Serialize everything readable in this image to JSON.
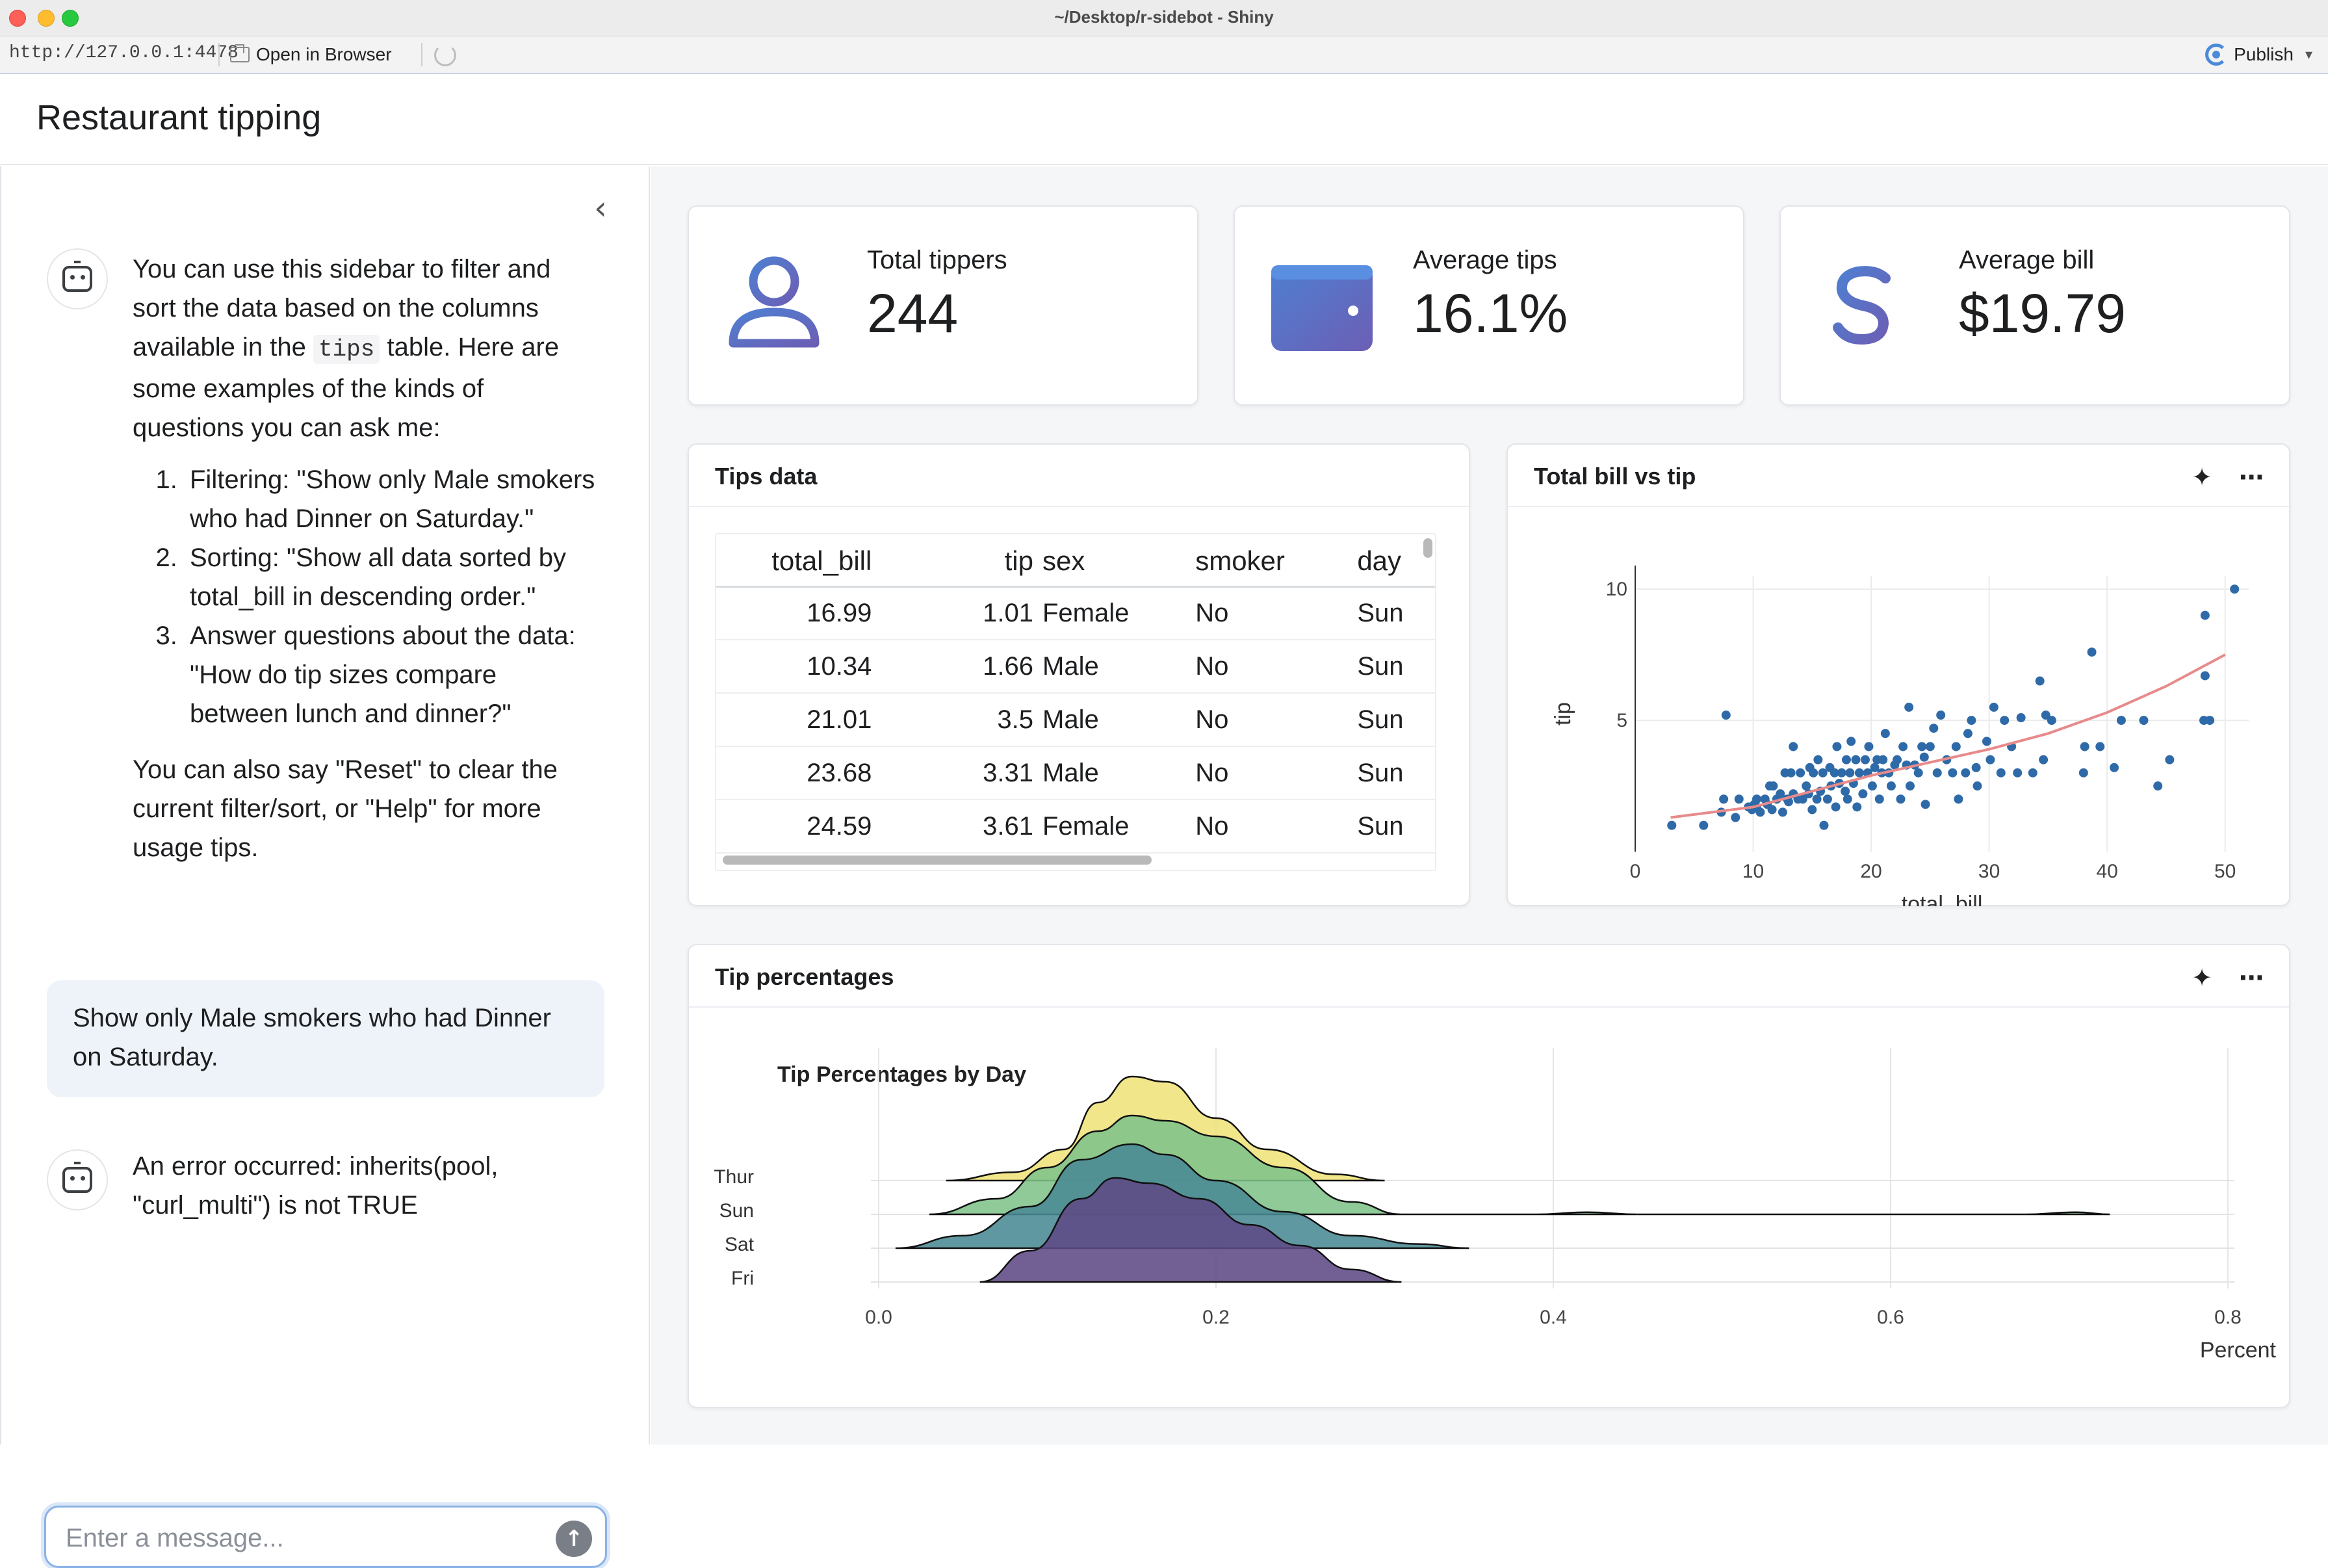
{
  "window": {
    "title": "~/Desktop/r-sidebot - Shiny",
    "url": "http://127.0.0.1:4478",
    "open_in_browser": "Open in Browser",
    "publish": "Publish"
  },
  "app": {
    "title": "Restaurant tipping"
  },
  "sidebar": {
    "intro_part1": "You can use this sidebar to filter and sort the data based on the columns available in the ",
    "intro_code": "tips",
    "intro_part2": " table. Here are some examples of the kinds of questions you can ask me:",
    "examples": [
      "Filtering: \"Show only Male smokers who had Dinner on Saturday.\"",
      "Sorting: \"Show all data sorted by total_bill in descending order.\"",
      "Answer questions about the data: \"How do tip sizes compare between lunch and dinner?\""
    ],
    "outro": "You can also say \"Reset\" to clear the current filter/sort, or \"Help\" for more usage tips.",
    "user_message": "Show only Male smokers who had Dinner on Saturday.",
    "error_message": "An error occurred: inherits(pool, \"curl_multi\") is not TRUE",
    "input_placeholder": "Enter a message...",
    "collapse_icon": "chevron-left-icon",
    "send_icon": "arrow-up-icon"
  },
  "value_boxes": [
    {
      "title": "Total tippers",
      "value": "244",
      "icon": "person-icon"
    },
    {
      "title": "Average tips",
      "value": "16.1%",
      "icon": "wallet-icon"
    },
    {
      "title": "Average bill",
      "value": "$19.79",
      "icon": "dollar-icon"
    }
  ],
  "colors": {
    "accent_gradient_start": "#4f7fd1",
    "accent_gradient_end": "#6b5fb5",
    "scatter_point": "#2f6aa8",
    "trend_line": "#e88a8a"
  },
  "tips_table": {
    "title": "Tips data",
    "columns": [
      "total_bill",
      "tip",
      "sex",
      "smoker",
      "day"
    ],
    "rows": [
      [
        "16.99",
        "1.01",
        "Female",
        "No",
        "Sun"
      ],
      [
        "10.34",
        "1.66",
        "Male",
        "No",
        "Sun"
      ],
      [
        "21.01",
        "3.5",
        "Male",
        "No",
        "Sun"
      ],
      [
        "23.68",
        "3.31",
        "Male",
        "No",
        "Sun"
      ],
      [
        "24.59",
        "3.61",
        "Female",
        "No",
        "Sun"
      ]
    ]
  },
  "scatter_card": {
    "title": "Total bill vs tip",
    "sparkle_icon": "sparkle-icon",
    "menu_icon": "more-horizontal-icon"
  },
  "ridge_card": {
    "title": "Tip percentages",
    "sparkle_icon": "sparkle-icon",
    "menu_icon": "more-horizontal-icon"
  },
  "chart_data": [
    {
      "type": "scatter",
      "xlabel": "total_bill",
      "ylabel": "tip",
      "xlim": [
        0,
        52
      ],
      "ylim": [
        0,
        10.5
      ],
      "xticks": [
        0,
        10,
        20,
        30,
        40,
        50
      ],
      "yticks": [
        5,
        10
      ],
      "grid": true,
      "trendline": [
        [
          3,
          1.3
        ],
        [
          10,
          1.7
        ],
        [
          15,
          2.3
        ],
        [
          20,
          2.9
        ],
        [
          25,
          3.4
        ],
        [
          30,
          3.9
        ],
        [
          35,
          4.5
        ],
        [
          40,
          5.3
        ],
        [
          45,
          6.3
        ],
        [
          50,
          7.5
        ]
      ],
      "points": [
        [
          3.1,
          1.0
        ],
        [
          5.8,
          1.0
        ],
        [
          7.3,
          1.5
        ],
        [
          7.5,
          2.0
        ],
        [
          7.7,
          5.2
        ],
        [
          8.5,
          1.3
        ],
        [
          8.8,
          2.0
        ],
        [
          9.6,
          1.7
        ],
        [
          9.9,
          1.6
        ],
        [
          10.1,
          1.8
        ],
        [
          10.3,
          1.7
        ],
        [
          10.3,
          2.0
        ],
        [
          10.6,
          1.5
        ],
        [
          11.0,
          2.0
        ],
        [
          11.2,
          1.8
        ],
        [
          11.4,
          2.5
        ],
        [
          11.6,
          1.6
        ],
        [
          11.7,
          2.5
        ],
        [
          12.0,
          2.0
        ],
        [
          12.3,
          2.2
        ],
        [
          12.5,
          1.5
        ],
        [
          12.7,
          3.0
        ],
        [
          12.9,
          2.0
        ],
        [
          13.0,
          1.9
        ],
        [
          13.2,
          3.0
        ],
        [
          13.4,
          2.2
        ],
        [
          13.4,
          4.0
        ],
        [
          13.8,
          2.0
        ],
        [
          14.0,
          3.0
        ],
        [
          14.2,
          2.0
        ],
        [
          14.5,
          2.5
        ],
        [
          14.7,
          2.2
        ],
        [
          14.8,
          3.2
        ],
        [
          15.0,
          1.6
        ],
        [
          15.1,
          3.0
        ],
        [
          15.4,
          2.0
        ],
        [
          15.5,
          3.5
        ],
        [
          15.7,
          2.3
        ],
        [
          15.9,
          3.0
        ],
        [
          16.0,
          1.0
        ],
        [
          16.3,
          2.0
        ],
        [
          16.5,
          3.2
        ],
        [
          16.6,
          2.5
        ],
        [
          16.9,
          3.0
        ],
        [
          17.0,
          1.7
        ],
        [
          17.1,
          4.0
        ],
        [
          17.3,
          2.6
        ],
        [
          17.5,
          3.0
        ],
        [
          17.8,
          2.3
        ],
        [
          17.9,
          3.5
        ],
        [
          18.0,
          2.0
        ],
        [
          18.2,
          3.0
        ],
        [
          18.3,
          4.2
        ],
        [
          18.5,
          2.6
        ],
        [
          18.7,
          3.5
        ],
        [
          18.8,
          1.7
        ],
        [
          19.0,
          3.0
        ],
        [
          19.3,
          2.2
        ],
        [
          19.5,
          3.5
        ],
        [
          19.7,
          3.0
        ],
        [
          19.8,
          4.0
        ],
        [
          20.1,
          2.5
        ],
        [
          20.3,
          3.2
        ],
        [
          20.5,
          3.5
        ],
        [
          20.7,
          2.0
        ],
        [
          20.9,
          3.0
        ],
        [
          21.0,
          3.5
        ],
        [
          21.2,
          4.5
        ],
        [
          21.5,
          3.0
        ],
        [
          21.7,
          2.5
        ],
        [
          22.0,
          3.3
        ],
        [
          22.2,
          3.5
        ],
        [
          22.5,
          2.0
        ],
        [
          22.7,
          4.0
        ],
        [
          23.0,
          3.3
        ],
        [
          23.2,
          5.5
        ],
        [
          23.3,
          2.5
        ],
        [
          23.7,
          3.3
        ],
        [
          24.0,
          3.0
        ],
        [
          24.3,
          4.0
        ],
        [
          24.5,
          3.6
        ],
        [
          24.6,
          1.8
        ],
        [
          25.0,
          4.0
        ],
        [
          25.3,
          4.7
        ],
        [
          25.6,
          3.0
        ],
        [
          25.9,
          5.2
        ],
        [
          26.4,
          3.5
        ],
        [
          26.9,
          3.0
        ],
        [
          27.2,
          4.0
        ],
        [
          27.4,
          2.0
        ],
        [
          28.0,
          3.0
        ],
        [
          28.2,
          4.5
        ],
        [
          28.5,
          5.0
        ],
        [
          28.9,
          3.2
        ],
        [
          29.0,
          2.5
        ],
        [
          29.8,
          4.2
        ],
        [
          30.1,
          3.5
        ],
        [
          30.4,
          5.5
        ],
        [
          31.0,
          3.0
        ],
        [
          31.3,
          5.0
        ],
        [
          31.9,
          4.0
        ],
        [
          32.4,
          3.0
        ],
        [
          32.7,
          5.1
        ],
        [
          33.7,
          3.0
        ],
        [
          34.3,
          6.5
        ],
        [
          34.6,
          3.5
        ],
        [
          34.8,
          5.2
        ],
        [
          35.3,
          5.0
        ],
        [
          38.0,
          3.0
        ],
        [
          38.1,
          4.0
        ],
        [
          38.7,
          7.6
        ],
        [
          39.4,
          4.0
        ],
        [
          40.6,
          3.2
        ],
        [
          41.2,
          5.0
        ],
        [
          43.1,
          5.0
        ],
        [
          44.3,
          2.5
        ],
        [
          45.3,
          3.5
        ],
        [
          48.2,
          5.0
        ],
        [
          48.3,
          6.7
        ],
        [
          48.3,
          9.0
        ],
        [
          48.7,
          5.0
        ],
        [
          50.8,
          10.0
        ]
      ]
    },
    {
      "type": "area",
      "subtype": "ridgeline",
      "title": "Tip Percentages by Day",
      "xlabel": "Percent",
      "xlim": [
        0,
        0.8
      ],
      "xticks": [
        0.0,
        0.2,
        0.4,
        0.6,
        0.8
      ],
      "categories": [
        "Thur",
        "Sun",
        "Sat",
        "Fri"
      ],
      "series": [
        {
          "name": "Thur",
          "color": "#f0e37a",
          "x": [
            0.04,
            0.08,
            0.11,
            0.13,
            0.15,
            0.17,
            0.2,
            0.23,
            0.27,
            0.3
          ],
          "density": [
            0.0,
            0.08,
            0.3,
            0.75,
            1.0,
            0.95,
            0.6,
            0.3,
            0.06,
            0.0
          ]
        },
        {
          "name": "Sun",
          "color": "#7fc38a",
          "x": [
            0.03,
            0.07,
            0.1,
            0.13,
            0.15,
            0.17,
            0.2,
            0.24,
            0.28,
            0.31,
            0.39,
            0.42,
            0.45,
            0.68,
            0.71,
            0.73
          ],
          "density": [
            0.0,
            0.15,
            0.45,
            0.8,
            0.95,
            0.9,
            0.75,
            0.45,
            0.12,
            0.0,
            0.0,
            0.02,
            0.0,
            0.0,
            0.02,
            0.0
          ]
        },
        {
          "name": "Sat",
          "color": "#4a8a94",
          "x": [
            0.01,
            0.05,
            0.09,
            0.12,
            0.15,
            0.17,
            0.2,
            0.24,
            0.28,
            0.32,
            0.35
          ],
          "density": [
            0.0,
            0.12,
            0.4,
            0.85,
            1.0,
            0.9,
            0.65,
            0.35,
            0.12,
            0.04,
            0.0
          ]
        },
        {
          "name": "Fri",
          "color": "#5e4a85",
          "x": [
            0.06,
            0.09,
            0.12,
            0.14,
            0.16,
            0.19,
            0.22,
            0.25,
            0.28,
            0.31
          ],
          "density": [
            0.0,
            0.3,
            0.8,
            1.0,
            0.95,
            0.8,
            0.55,
            0.35,
            0.12,
            0.0
          ]
        }
      ]
    }
  ]
}
